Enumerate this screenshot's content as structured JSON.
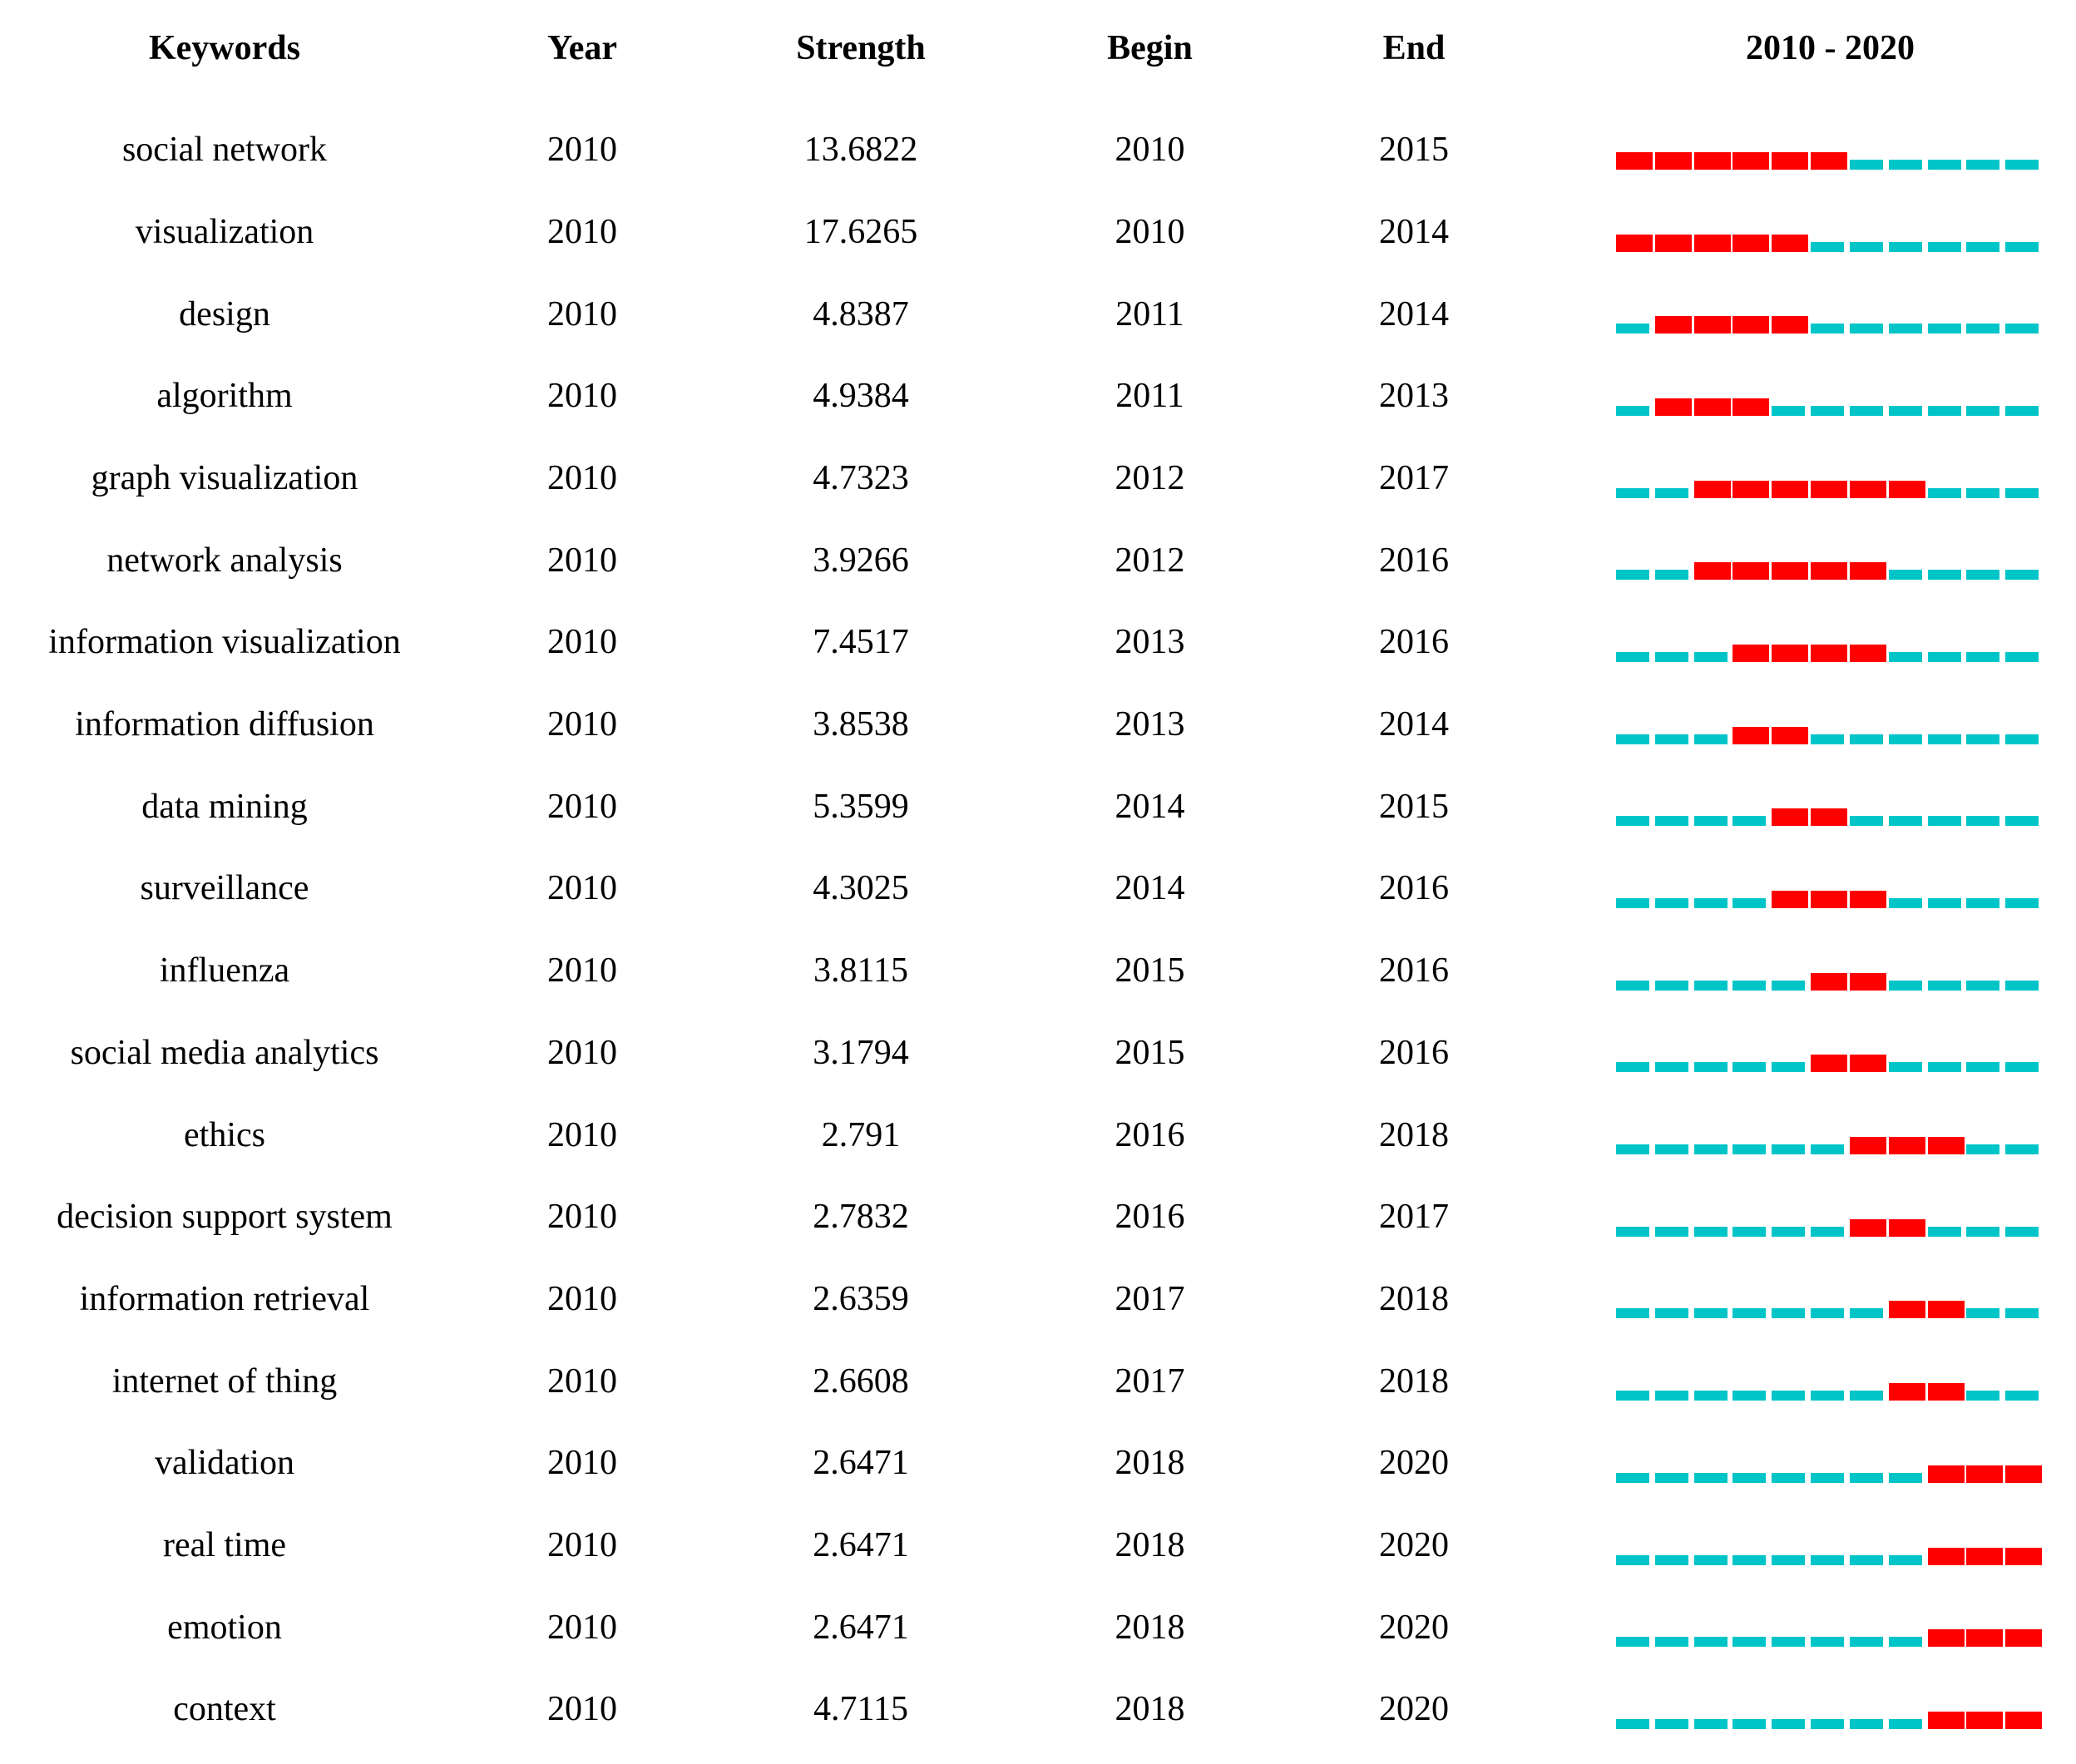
{
  "chart_data": {
    "type": "table",
    "headers": {
      "keywords": "Keywords",
      "year": "Year",
      "strength": "Strength",
      "begin": "Begin",
      "end": "End",
      "timeline": "2010 - 2020"
    },
    "timeline_range": {
      "start": 2010,
      "end": 2020
    },
    "colors": {
      "burst": "#FF0000",
      "base": "#00C5C8"
    },
    "rows": [
      {
        "keyword": "social network",
        "year": "2010",
        "strength": "13.6822",
        "begin": "2010",
        "end": "2015"
      },
      {
        "keyword": "visualization",
        "year": "2010",
        "strength": "17.6265",
        "begin": "2010",
        "end": "2014"
      },
      {
        "keyword": "design",
        "year": "2010",
        "strength": "4.8387",
        "begin": "2011",
        "end": "2014"
      },
      {
        "keyword": "algorithm",
        "year": "2010",
        "strength": "4.9384",
        "begin": "2011",
        "end": "2013"
      },
      {
        "keyword": "graph visualization",
        "year": "2010",
        "strength": "4.7323",
        "begin": "2012",
        "end": "2017"
      },
      {
        "keyword": "network analysis",
        "year": "2010",
        "strength": "3.9266",
        "begin": "2012",
        "end": "2016"
      },
      {
        "keyword": "information visualization",
        "year": "2010",
        "strength": "7.4517",
        "begin": "2013",
        "end": "2016"
      },
      {
        "keyword": "information diffusion",
        "year": "2010",
        "strength": "3.8538",
        "begin": "2013",
        "end": "2014"
      },
      {
        "keyword": "data mining",
        "year": "2010",
        "strength": "5.3599",
        "begin": "2014",
        "end": "2015"
      },
      {
        "keyword": "surveillance",
        "year": "2010",
        "strength": "4.3025",
        "begin": "2014",
        "end": "2016"
      },
      {
        "keyword": "influenza",
        "year": "2010",
        "strength": "3.8115",
        "begin": "2015",
        "end": "2016"
      },
      {
        "keyword": "social media analytics",
        "year": "2010",
        "strength": "3.1794",
        "begin": "2015",
        "end": "2016"
      },
      {
        "keyword": "ethics",
        "year": "2010",
        "strength": "2.791",
        "begin": "2016",
        "end": "2018"
      },
      {
        "keyword": "decision support system",
        "year": "2010",
        "strength": "2.7832",
        "begin": "2016",
        "end": "2017"
      },
      {
        "keyword": "information retrieval",
        "year": "2010",
        "strength": "2.6359",
        "begin": "2017",
        "end": "2018"
      },
      {
        "keyword": "internet of thing",
        "year": "2010",
        "strength": "2.6608",
        "begin": "2017",
        "end": "2018"
      },
      {
        "keyword": "validation",
        "year": "2010",
        "strength": "2.6471",
        "begin": "2018",
        "end": "2020"
      },
      {
        "keyword": "real time",
        "year": "2010",
        "strength": "2.6471",
        "begin": "2018",
        "end": "2020"
      },
      {
        "keyword": "emotion",
        "year": "2010",
        "strength": "2.6471",
        "begin": "2018",
        "end": "2020"
      },
      {
        "keyword": "context",
        "year": "2010",
        "strength": "4.7115",
        "begin": "2018",
        "end": "2020"
      }
    ]
  }
}
